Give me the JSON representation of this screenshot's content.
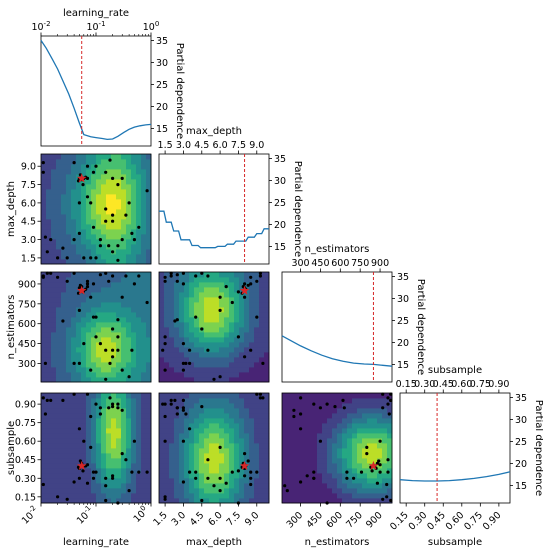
{
  "colors": {
    "line": "#1f77b4",
    "vline": "#d62728",
    "star": "#d62728",
    "point": "#000000",
    "viridis": [
      "#440154",
      "#482173",
      "#433e85",
      "#38598c",
      "#2d708e",
      "#25858e",
      "#1e9b8a",
      "#2ab07f",
      "#52c569",
      "#86d549",
      "#c2df23",
      "#fde725"
    ]
  },
  "chart_data": {
    "type": "partial-dependence-matrix",
    "parameters": [
      {
        "name": "learning_rate",
        "scale": "log",
        "range": [
          0.01,
          1.0
        ],
        "best": 0.055,
        "pd_curve": [
          [
            0.01,
            35
          ],
          [
            0.0125,
            33.2
          ],
          [
            0.016,
            30.8
          ],
          [
            0.02,
            28.5
          ],
          [
            0.025,
            25.8
          ],
          [
            0.032,
            22.8
          ],
          [
            0.04,
            19.6
          ],
          [
            0.05,
            16.2
          ],
          [
            0.06,
            13.6
          ],
          [
            0.08,
            13.1
          ],
          [
            0.1,
            12.9
          ],
          [
            0.13,
            12.7
          ],
          [
            0.16,
            12.5
          ],
          [
            0.2,
            12.6
          ],
          [
            0.25,
            13.2
          ],
          [
            0.32,
            14.1
          ],
          [
            0.4,
            14.8
          ],
          [
            0.5,
            15.3
          ],
          [
            0.63,
            15.6
          ],
          [
            0.8,
            15.8
          ],
          [
            1.0,
            15.9
          ]
        ]
      },
      {
        "name": "max_depth",
        "scale": "linear",
        "range": [
          1,
          10
        ],
        "best": 8,
        "pd_curve": [
          [
            1,
            23
          ],
          [
            1.4,
            23
          ],
          [
            1.6,
            20.5
          ],
          [
            2,
            20.5
          ],
          [
            2.2,
            18.5
          ],
          [
            2.6,
            18.5
          ],
          [
            2.8,
            16.5
          ],
          [
            3.5,
            16.5
          ],
          [
            3.7,
            15.2
          ],
          [
            4.2,
            15.2
          ],
          [
            4.4,
            14.7
          ],
          [
            5.6,
            14.7
          ],
          [
            5.8,
            15.0
          ],
          [
            6.4,
            15.0
          ],
          [
            6.6,
            15.5
          ],
          [
            7.1,
            15.5
          ],
          [
            7.3,
            16.2
          ],
          [
            8.1,
            16.2
          ],
          [
            8.3,
            17.1
          ],
          [
            8.8,
            17.1
          ],
          [
            9.0,
            17.9
          ],
          [
            9.4,
            17.9
          ],
          [
            9.6,
            19.0
          ],
          [
            10,
            19.0
          ]
        ]
      },
      {
        "name": "n_estimators",
        "scale": "linear",
        "range": [
          160,
          990
        ],
        "best": 850,
        "pd_curve": [
          [
            160,
            21.5
          ],
          [
            220,
            20.5
          ],
          [
            300,
            19.2
          ],
          [
            380,
            18.1
          ],
          [
            460,
            17.1
          ],
          [
            540,
            16.3
          ],
          [
            620,
            15.7
          ],
          [
            700,
            15.3
          ],
          [
            780,
            15.1
          ],
          [
            850,
            15.0
          ],
          [
            920,
            14.8
          ],
          [
            990,
            14.6
          ]
        ]
      },
      {
        "name": "subsample",
        "scale": "linear",
        "range": [
          0.1,
          0.99
        ],
        "best": 0.4,
        "pd_curve": [
          [
            0.1,
            16.3
          ],
          [
            0.2,
            16.1
          ],
          [
            0.3,
            16.0
          ],
          [
            0.4,
            16.0
          ],
          [
            0.5,
            16.1
          ],
          [
            0.6,
            16.3
          ],
          [
            0.7,
            16.6
          ],
          [
            0.8,
            17.0
          ],
          [
            0.9,
            17.5
          ],
          [
            0.99,
            18.1
          ]
        ]
      }
    ],
    "pd_ylim": [
      11,
      36
    ],
    "pd_yticks": [
      "15",
      "20",
      "25",
      "30",
      "35"
    ],
    "pd_ylabel": "Partial dependence",
    "ticks": {
      "learning_rate": {
        "values": [
          0.01,
          0.1,
          1
        ],
        "labels": [
          "10^-2",
          "10^-1",
          "10^0"
        ],
        "minor": [
          0.02,
          0.03,
          0.04,
          0.05,
          0.06,
          0.07,
          0.08,
          0.09,
          0.2,
          0.3,
          0.4,
          0.5,
          0.6,
          0.7,
          0.8,
          0.9
        ]
      },
      "max_depth": {
        "values": [
          1.5,
          3,
          4.5,
          6,
          7.5,
          9
        ],
        "labels": [
          "1.5",
          "3.0",
          "4.5",
          "6.0",
          "7.5",
          "9.0"
        ]
      },
      "n_estimators": {
        "values": [
          300,
          450,
          600,
          750,
          900
        ],
        "labels": [
          "300",
          "450",
          "600",
          "750",
          "900"
        ]
      },
      "subsample": {
        "values": [
          0.15,
          0.3,
          0.45,
          0.6,
          0.75,
          0.9
        ],
        "labels": [
          "0.15",
          "0.30",
          "0.45",
          "0.60",
          "0.75",
          "0.90"
        ]
      }
    },
    "samples": [
      [
        0.06,
        8,
        850,
        0.4
      ],
      [
        0.05,
        8,
        870,
        0.38
      ],
      [
        0.055,
        7.9,
        880,
        0.42
      ],
      [
        0.065,
        8.1,
        860,
        0.4
      ],
      [
        0.058,
        7.5,
        840,
        0.36
      ],
      [
        0.052,
        8.3,
        890,
        0.44
      ],
      [
        0.07,
        8,
        900,
        0.41
      ],
      [
        0.048,
        7.8,
        830,
        0.39
      ],
      [
        0.011,
        9.3,
        960,
        0.95
      ],
      [
        0.011,
        8.5,
        950,
        0.25
      ],
      [
        0.012,
        3.2,
        300,
        0.82
      ],
      [
        0.013,
        2.0,
        980,
        0.93
      ],
      [
        0.015,
        3.0,
        980,
        0.93
      ],
      [
        0.02,
        1.5,
        950,
        0.15
      ],
      [
        0.03,
        1.5,
        920,
        0.13
      ],
      [
        0.04,
        3.0,
        300,
        0.27
      ],
      [
        0.05,
        6.0,
        700,
        0.3
      ],
      [
        0.06,
        1.5,
        450,
        0.6
      ],
      [
        0.07,
        6.5,
        880,
        0.26
      ],
      [
        0.08,
        6.0,
        800,
        0.55
      ],
      [
        0.09,
        4.0,
        650,
        0.3
      ],
      [
        0.1,
        1.5,
        500,
        0.9
      ],
      [
        0.12,
        3.0,
        450,
        0.87
      ],
      [
        0.15,
        5.5,
        180,
        0.24
      ],
      [
        0.18,
        9.5,
        300,
        0.95
      ],
      [
        0.2,
        4.5,
        560,
        0.88
      ],
      [
        0.25,
        1.3,
        400,
        0.9
      ],
      [
        0.3,
        3.0,
        250,
        0.85
      ],
      [
        0.15,
        4.5,
        980,
        0.12
      ],
      [
        0.12,
        2.5,
        970,
        0.82
      ],
      [
        0.17,
        2.5,
        920,
        0.87
      ],
      [
        0.2,
        2.0,
        960,
        0.9
      ],
      [
        0.25,
        2.5,
        630,
        0.87
      ],
      [
        0.35,
        5.0,
        960,
        0.45
      ],
      [
        0.4,
        6.0,
        200,
        0.2
      ],
      [
        0.45,
        3.5,
        400,
        0.35
      ],
      [
        0.5,
        3.0,
        900,
        0.6
      ],
      [
        0.6,
        4.0,
        960,
        0.35
      ],
      [
        0.07,
        9.0,
        920,
        0.98
      ],
      [
        0.04,
        9.3,
        980,
        0.98
      ],
      [
        0.09,
        8.5,
        900,
        0.35
      ],
      [
        0.1,
        9.0,
        650,
        0.35
      ],
      [
        0.2,
        8.0,
        350,
        0.32
      ],
      [
        0.15,
        8.5,
        400,
        0.3
      ],
      [
        0.25,
        7.5,
        500,
        0.1
      ],
      [
        0.3,
        8.0,
        800,
        0.5
      ],
      [
        0.08,
        1.5,
        250,
        0.8
      ],
      [
        0.2,
        5.0,
        400,
        0.3
      ],
      [
        0.85,
        7.0,
        760,
        0.35
      ],
      [
        0.05,
        3.5,
        300,
        0.7
      ],
      [
        0.025,
        2.3,
        620,
        0.93
      ]
    ]
  }
}
